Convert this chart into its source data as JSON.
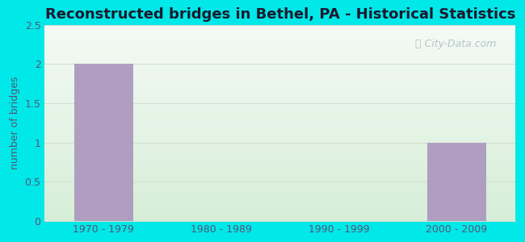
{
  "title": "Reconstructed bridges in Bethel, PA - Historical Statistics",
  "categories": [
    "1970 - 1979",
    "1980 - 1989",
    "1990 - 1999",
    "2000 - 2009"
  ],
  "values": [
    2,
    0,
    0,
    1
  ],
  "bar_color": "#b09ec0",
  "ylabel": "number of bridges",
  "ylim": [
    0,
    2.5
  ],
  "yticks": [
    0,
    0.5,
    1,
    1.5,
    2,
    2.5
  ],
  "background_outer": "#00e8e8",
  "background_plot_top": "#f5faf5",
  "background_plot_bottom": "#d6eed8",
  "grid_color": "#d0ddd0",
  "title_color": "#1a1a2e",
  "tick_color": "#555577",
  "ylabel_color": "#555577",
  "watermark": "City-Data.com",
  "watermark_color": "#aabbc0",
  "title_fontsize": 13,
  "label_fontsize": 9,
  "tick_fontsize": 9,
  "bar_width": 0.5
}
